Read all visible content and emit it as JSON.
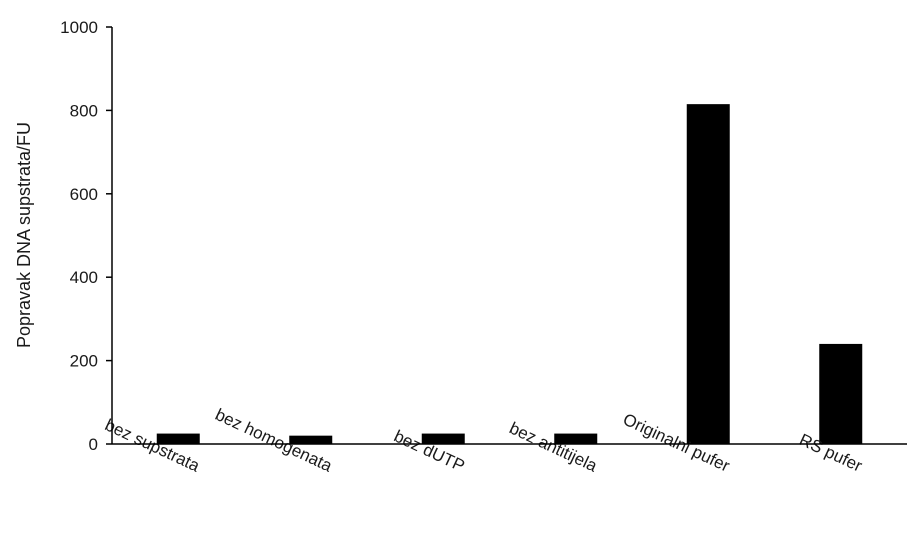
{
  "chart_data": {
    "type": "bar",
    "title": "",
    "xlabel": "",
    "ylabel": "Popravak DNA supstrata/FU",
    "ylim": [
      0,
      1000
    ],
    "yticks": [
      0,
      200,
      400,
      600,
      800,
      1000
    ],
    "categories": [
      "bez supstrata",
      "bez homogenata",
      "bez dUTP",
      "bez antitijela",
      "Originalni pufer",
      "RS pufer"
    ],
    "values": [
      25,
      20,
      25,
      25,
      815,
      240
    ],
    "bar_color": "#000000",
    "grid": false,
    "legend": "none"
  }
}
